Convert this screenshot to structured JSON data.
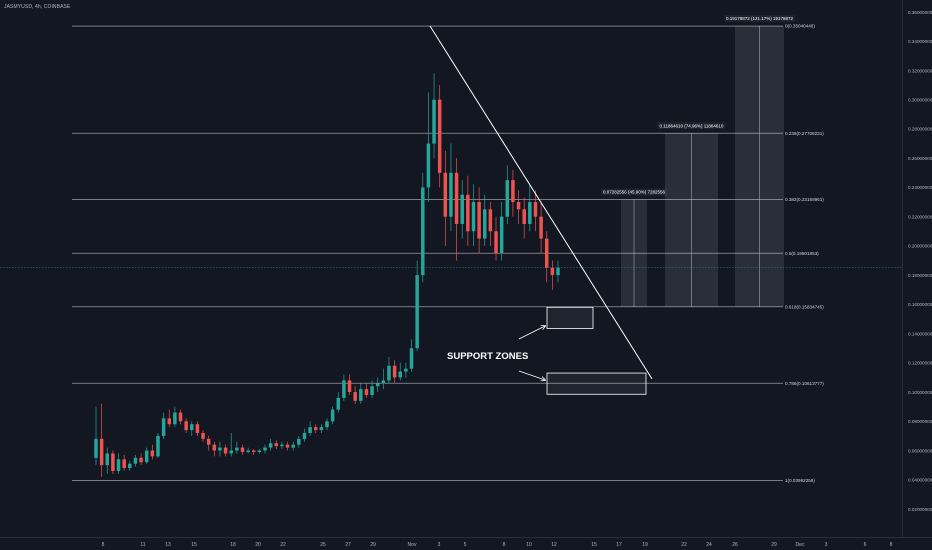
{
  "header": {
    "symbol": "JASMYUSD, 4h, COINBASE"
  },
  "price_tag": {
    "price": "0.18513000",
    "countdown": "01:36:18"
  },
  "annotations": {
    "support_label": "SUPPORT ZONES"
  },
  "colors": {
    "background": "#131722",
    "up": "#26a69a",
    "down": "#ef5350",
    "text": "#b2b5be",
    "lines": "#d1d4dc",
    "price_tag": "#26a69a"
  },
  "chart_data": {
    "type": "candlestick",
    "title": "",
    "xlabel": "",
    "ylabel": "",
    "ylim": [
      0.01,
      0.37
    ],
    "grid": false,
    "x_ticks": [
      "8",
      "11",
      "13",
      "15",
      "18",
      "20",
      "22",
      "25",
      "27",
      "29",
      "Nov",
      "3",
      "5",
      "8",
      "10",
      "12",
      "15",
      "17",
      "19",
      "22",
      "24",
      "26",
      "29",
      "Dec",
      "3",
      "6",
      "8"
    ],
    "y_ticks": [
      "0.36000000",
      "0.34000000",
      "0.32000000",
      "0.30000000",
      "0.28000000",
      "0.26000000",
      "0.24000000",
      "0.22000000",
      "0.20000000",
      "0.18000000",
      "0.16000000",
      "0.14000000",
      "0.12000000",
      "0.10000000",
      "0.08000000",
      "0.06000000",
      "0.04000000",
      "0.02000000"
    ],
    "fib_levels": [
      {
        "label": "0(0.35040448)",
        "value": 0.3504
      },
      {
        "label": "0.236(0.27706231)",
        "value": 0.2771
      },
      {
        "label": "0.382(0.23168961)",
        "value": 0.2317
      },
      {
        "label": "0.5(0.19501853)",
        "value": 0.195
      },
      {
        "label": "0.618(0.15834745)",
        "value": 0.1583
      },
      {
        "label": "0.786(0.10613777)",
        "value": 0.1061
      },
      {
        "label": "1(0.03962259)",
        "value": 0.0396
      }
    ],
    "targets": [
      {
        "label": "0.07282556 (45.90%) 7282556",
        "top": 0.2317,
        "bottom": 0.1583
      },
      {
        "label": "0.11864610 (74.96%) 11864610",
        "top": 0.2771,
        "bottom": 0.1583
      },
      {
        "label": "0.19178872 (121.17%) 19178872",
        "top": 0.3504,
        "bottom": 0.1583
      }
    ],
    "support_zones": [
      {
        "top": 0.158,
        "bottom": 0.1435
      },
      {
        "top": 0.113,
        "bottom": 0.0985
      }
    ],
    "trendline": {
      "start": 0.3504,
      "end": 0.109
    },
    "current_price": 0.18513,
    "candles": [
      [
        0.055,
        0.068,
        0.05,
        0.09
      ],
      [
        0.068,
        0.05,
        0.042,
        0.092
      ],
      [
        0.05,
        0.058,
        0.044,
        0.062
      ],
      [
        0.058,
        0.046,
        0.044,
        0.06
      ],
      [
        0.046,
        0.054,
        0.044,
        0.058
      ],
      [
        0.054,
        0.048,
        0.046,
        0.057
      ],
      [
        0.048,
        0.051,
        0.046,
        0.053
      ],
      [
        0.051,
        0.055,
        0.049,
        0.057
      ],
      [
        0.055,
        0.052,
        0.05,
        0.058
      ],
      [
        0.052,
        0.06,
        0.051,
        0.062
      ],
      [
        0.06,
        0.056,
        0.054,
        0.064
      ],
      [
        0.056,
        0.07,
        0.055,
        0.072
      ],
      [
        0.07,
        0.082,
        0.068,
        0.086
      ],
      [
        0.082,
        0.078,
        0.076,
        0.088
      ],
      [
        0.078,
        0.086,
        0.076,
        0.09
      ],
      [
        0.086,
        0.08,
        0.078,
        0.088
      ],
      [
        0.08,
        0.074,
        0.072,
        0.082
      ],
      [
        0.074,
        0.078,
        0.07,
        0.08
      ],
      [
        0.078,
        0.072,
        0.07,
        0.08
      ],
      [
        0.072,
        0.068,
        0.066,
        0.074
      ],
      [
        0.068,
        0.064,
        0.06,
        0.07
      ],
      [
        0.064,
        0.06,
        0.056,
        0.066
      ],
      [
        0.06,
        0.062,
        0.056,
        0.066
      ],
      [
        0.062,
        0.058,
        0.056,
        0.064
      ],
      [
        0.058,
        0.06,
        0.056,
        0.072
      ],
      [
        0.06,
        0.062,
        0.058,
        0.066
      ],
      [
        0.062,
        0.059,
        0.057,
        0.064
      ],
      [
        0.059,
        0.06,
        0.058,
        0.062
      ],
      [
        0.06,
        0.059,
        0.057,
        0.061
      ],
      [
        0.059,
        0.06,
        0.058,
        0.061
      ],
      [
        0.06,
        0.062,
        0.058,
        0.064
      ],
      [
        0.062,
        0.065,
        0.06,
        0.068
      ],
      [
        0.065,
        0.063,
        0.061,
        0.067
      ],
      [
        0.063,
        0.064,
        0.061,
        0.066
      ],
      [
        0.064,
        0.062,
        0.06,
        0.066
      ],
      [
        0.062,
        0.064,
        0.06,
        0.066
      ],
      [
        0.064,
        0.068,
        0.062,
        0.07
      ],
      [
        0.068,
        0.072,
        0.066,
        0.075
      ],
      [
        0.072,
        0.076,
        0.07,
        0.08
      ],
      [
        0.076,
        0.074,
        0.072,
        0.078
      ],
      [
        0.074,
        0.076,
        0.072,
        0.078
      ],
      [
        0.076,
        0.08,
        0.074,
        0.082
      ],
      [
        0.08,
        0.088,
        0.078,
        0.09
      ],
      [
        0.088,
        0.096,
        0.086,
        0.1
      ],
      [
        0.096,
        0.108,
        0.094,
        0.112
      ],
      [
        0.108,
        0.1,
        0.098,
        0.112
      ],
      [
        0.1,
        0.094,
        0.092,
        0.104
      ],
      [
        0.094,
        0.102,
        0.092,
        0.106
      ],
      [
        0.102,
        0.098,
        0.096,
        0.106
      ],
      [
        0.098,
        0.104,
        0.096,
        0.108
      ],
      [
        0.104,
        0.106,
        0.1,
        0.11
      ],
      [
        0.106,
        0.108,
        0.102,
        0.116
      ],
      [
        0.108,
        0.118,
        0.106,
        0.124
      ],
      [
        0.118,
        0.11,
        0.106,
        0.122
      ],
      [
        0.11,
        0.114,
        0.108,
        0.12
      ],
      [
        0.114,
        0.116,
        0.11,
        0.12
      ],
      [
        0.116,
        0.13,
        0.114,
        0.136
      ],
      [
        0.13,
        0.18,
        0.128,
        0.19
      ],
      [
        0.18,
        0.24,
        0.175,
        0.25
      ],
      [
        0.24,
        0.27,
        0.23,
        0.305
      ],
      [
        0.27,
        0.3,
        0.26,
        0.318
      ],
      [
        0.3,
        0.25,
        0.24,
        0.31
      ],
      [
        0.25,
        0.22,
        0.2,
        0.265
      ],
      [
        0.22,
        0.25,
        0.21,
        0.27
      ],
      [
        0.25,
        0.215,
        0.19,
        0.26
      ],
      [
        0.215,
        0.235,
        0.205,
        0.245
      ],
      [
        0.235,
        0.21,
        0.2,
        0.248
      ],
      [
        0.21,
        0.23,
        0.2,
        0.242
      ],
      [
        0.23,
        0.205,
        0.195,
        0.24
      ],
      [
        0.205,
        0.225,
        0.2,
        0.235
      ],
      [
        0.225,
        0.21,
        0.2,
        0.23
      ],
      [
        0.21,
        0.195,
        0.19,
        0.22
      ],
      [
        0.195,
        0.22,
        0.19,
        0.23
      ],
      [
        0.22,
        0.245,
        0.215,
        0.255
      ],
      [
        0.245,
        0.23,
        0.22,
        0.252
      ],
      [
        0.23,
        0.225,
        0.215,
        0.238
      ],
      [
        0.225,
        0.215,
        0.205,
        0.233
      ],
      [
        0.215,
        0.23,
        0.21,
        0.242
      ],
      [
        0.23,
        0.22,
        0.21,
        0.238
      ],
      [
        0.22,
        0.205,
        0.195,
        0.23
      ],
      [
        0.205,
        0.185,
        0.175,
        0.21
      ],
      [
        0.185,
        0.18,
        0.17,
        0.19
      ],
      [
        0.18,
        0.185,
        0.175,
        0.19
      ]
    ]
  }
}
